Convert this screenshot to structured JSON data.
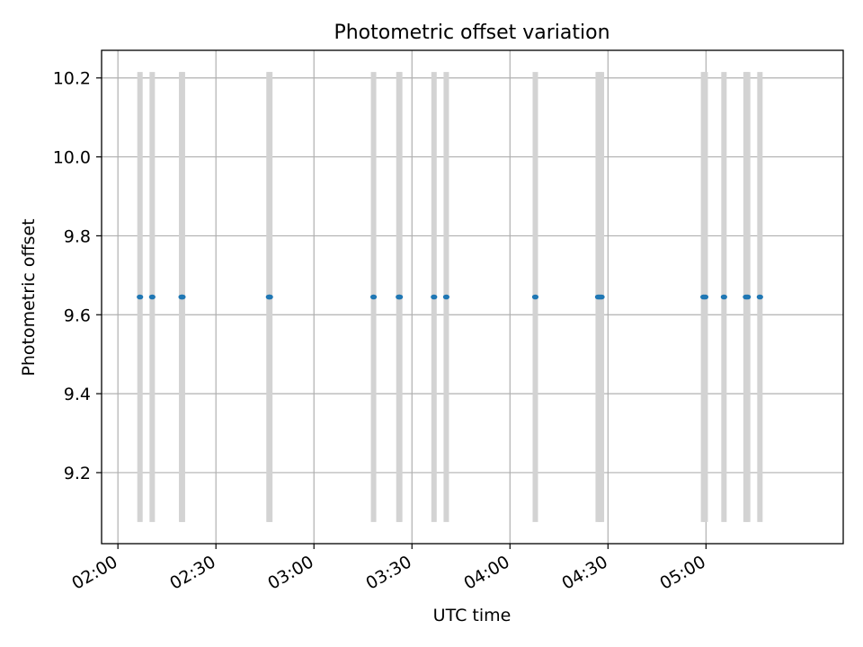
{
  "chart_data": {
    "type": "scatter",
    "title": "Photometric offset variation",
    "xlabel": "UTC time",
    "ylabel": "Photometric offset",
    "xlim": [
      "01:55",
      "05:42"
    ],
    "ylim": [
      9.02,
      10.27
    ],
    "x_ticks": [
      "02:00",
      "02:30",
      "03:00",
      "03:30",
      "04:00",
      "04:30",
      "05:00"
    ],
    "y_ticks": [
      9.2,
      9.4,
      9.6,
      9.8,
      10.0,
      10.2
    ],
    "y_tick_labels": [
      "9.2",
      "9.4",
      "9.6",
      "9.8",
      "10.0",
      "10.2"
    ],
    "grid": true,
    "error_bar_color": "#d3d3d3",
    "marker_color": "#1f77b4",
    "points": [
      {
        "time": "02:06:45",
        "value": 9.645,
        "err_low": 9.075,
        "err_high": 10.215
      },
      {
        "time": "02:10:30",
        "value": 9.645,
        "err_low": 9.075,
        "err_high": 10.215
      },
      {
        "time": "02:19:30",
        "value": 9.645,
        "err_low": 9.075,
        "err_high": 10.215
      },
      {
        "time": "02:19:45",
        "value": 9.645,
        "err_low": 9.075,
        "err_high": 10.215
      },
      {
        "time": "02:46:15",
        "value": 9.645,
        "err_low": 9.075,
        "err_high": 10.215
      },
      {
        "time": "02:46:30",
        "value": 9.645,
        "err_low": 9.075,
        "err_high": 10.215
      },
      {
        "time": "03:18:15",
        "value": 9.645,
        "err_low": 9.075,
        "err_high": 10.215
      },
      {
        "time": "03:26:00",
        "value": 9.645,
        "err_low": 9.075,
        "err_high": 10.215
      },
      {
        "time": "03:26:15",
        "value": 9.645,
        "err_low": 9.075,
        "err_high": 10.215
      },
      {
        "time": "03:36:45",
        "value": 9.645,
        "err_low": 9.075,
        "err_high": 10.215
      },
      {
        "time": "03:40:30",
        "value": 9.645,
        "err_low": 9.075,
        "err_high": 10.215
      },
      {
        "time": "04:07:45",
        "value": 9.645,
        "err_low": 9.075,
        "err_high": 10.215
      },
      {
        "time": "04:27:00",
        "value": 9.645,
        "err_low": 9.075,
        "err_high": 10.215
      },
      {
        "time": "04:27:30",
        "value": 9.645,
        "err_low": 9.075,
        "err_high": 10.215
      },
      {
        "time": "04:28:00",
        "value": 9.645,
        "err_low": 9.075,
        "err_high": 10.215
      },
      {
        "time": "04:59:15",
        "value": 9.645,
        "err_low": 9.075,
        "err_high": 10.215
      },
      {
        "time": "04:59:45",
        "value": 9.645,
        "err_low": 9.075,
        "err_high": 10.215
      },
      {
        "time": "05:05:30",
        "value": 9.645,
        "err_low": 9.075,
        "err_high": 10.215
      },
      {
        "time": "05:12:15",
        "value": 9.645,
        "err_low": 9.075,
        "err_high": 10.215
      },
      {
        "time": "05:12:45",
        "value": 9.645,
        "err_low": 9.075,
        "err_high": 10.215
      },
      {
        "time": "05:16:30",
        "value": 9.645,
        "err_low": 9.075,
        "err_high": 10.215
      }
    ]
  }
}
